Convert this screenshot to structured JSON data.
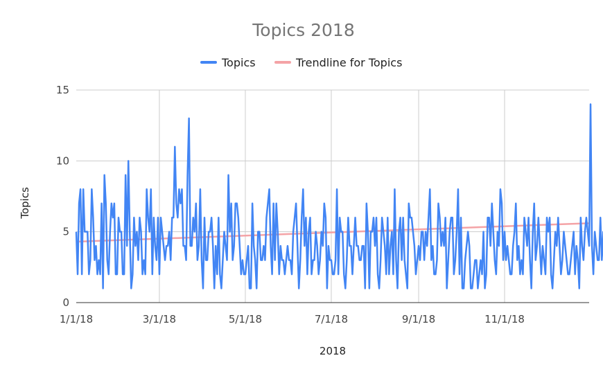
{
  "colors": {
    "topics": "#4285f4",
    "trendline": "#f4a3a6",
    "grid": "#cccccc"
  },
  "chart_data": {
    "type": "line",
    "title": "Topics 2018",
    "xlabel": "2018",
    "ylabel": "Topics",
    "ylim": [
      0,
      15
    ],
    "yticks": [
      0,
      5,
      10,
      15
    ],
    "x_range": [
      "2018-01-01",
      "2018-12-31"
    ],
    "xticks": [
      {
        "label": "1/1/18",
        "date": "2018-01-01"
      },
      {
        "label": "3/1/18",
        "date": "2018-03-01"
      },
      {
        "label": "5/1/18",
        "date": "2018-05-01"
      },
      {
        "label": "7/1/18",
        "date": "2018-07-01"
      },
      {
        "label": "9/1/18",
        "date": "2018-09-01"
      },
      {
        "label": "11/1/18",
        "date": "2018-11-01"
      }
    ],
    "grid": true,
    "legend_position": "top",
    "series": [
      {
        "name": "Topics",
        "start_date": "2018-01-01",
        "values": [
          5,
          2,
          7,
          8,
          2,
          8,
          5,
          5,
          5,
          2,
          3,
          8,
          6,
          3,
          4,
          2,
          3,
          2,
          7,
          1,
          9,
          7,
          3,
          2,
          5,
          7,
          6,
          7,
          2,
          2,
          6,
          5,
          5,
          2,
          2,
          9,
          4,
          10,
          5,
          1,
          2,
          6,
          4,
          5,
          3,
          6,
          5,
          2,
          3,
          2,
          8,
          6,
          5,
          8,
          2,
          6,
          4,
          3,
          6,
          2,
          6,
          5,
          4,
          3,
          4,
          4,
          5,
          3,
          6,
          6,
          11,
          7,
          6,
          8,
          7,
          8,
          4,
          4,
          3,
          9,
          13,
          4,
          4,
          6,
          5,
          7,
          3,
          4,
          8,
          3,
          1,
          6,
          3,
          3,
          5,
          5,
          6,
          4,
          1,
          4,
          2,
          6,
          2,
          1,
          3,
          5,
          4,
          3,
          9,
          5,
          7,
          3,
          4,
          7,
          7,
          6,
          4,
          2,
          3,
          2,
          2,
          3,
          4,
          1,
          1,
          7,
          4,
          3,
          1,
          5,
          5,
          3,
          3,
          4,
          3,
          6,
          7,
          8,
          4,
          2,
          7,
          3,
          7,
          5,
          2,
          4,
          3,
          3,
          2,
          3,
          4,
          3,
          3,
          2,
          5,
          6,
          7,
          4,
          1,
          3,
          6,
          8,
          4,
          6,
          2,
          5,
          6,
          2,
          3,
          3,
          5,
          4,
          2,
          3,
          5,
          4,
          7,
          6,
          1,
          4,
          3,
          3,
          2,
          2,
          3,
          8,
          2,
          6,
          5,
          5,
          2,
          1,
          3,
          6,
          4,
          4,
          2,
          4,
          6,
          4,
          4,
          3,
          3,
          4,
          4,
          1,
          7,
          5,
          1,
          5,
          5,
          6,
          4,
          6,
          2,
          1,
          3,
          6,
          5,
          4,
          2,
          6,
          2,
          4,
          5,
          2,
          8,
          3,
          1,
          5,
          6,
          3,
          6,
          3,
          2,
          1,
          7,
          6,
          6,
          5,
          4,
          2,
          3,
          4,
          3,
          5,
          5,
          3,
          5,
          4,
          6,
          8,
          3,
          4,
          2,
          2,
          3,
          7,
          6,
          4,
          5,
          4,
          6,
          1,
          3,
          5,
          6,
          6,
          2,
          3,
          5,
          8,
          2,
          6,
          1,
          1,
          3,
          4,
          5,
          4,
          1,
          1,
          2,
          3,
          3,
          1,
          2,
          3,
          2,
          5,
          1,
          2,
          6,
          6,
          4,
          7,
          5,
          3,
          2,
          5,
          4,
          8,
          7,
          3,
          5,
          3,
          4,
          3,
          2,
          2,
          4,
          5,
          7,
          3,
          4,
          2,
          3,
          2,
          6,
          5,
          4,
          6,
          3,
          1,
          5,
          7,
          3,
          4,
          6,
          4,
          2,
          4,
          3,
          2,
          6,
          5,
          6,
          2,
          1,
          3,
          5,
          4,
          6,
          4,
          2,
          3,
          5,
          4,
          3,
          2,
          2,
          3,
          4,
          5,
          2,
          4,
          3,
          1,
          6,
          4,
          3,
          5,
          6,
          5,
          4,
          14,
          4,
          2,
          5,
          4,
          3,
          3,
          6,
          3,
          5,
          1,
          2,
          6,
          7,
          3,
          2,
          4,
          8,
          5,
          2,
          1,
          6,
          5,
          4,
          3,
          5,
          7,
          4,
          8,
          4,
          2,
          1,
          6
        ]
      },
      {
        "name": "Trendline for Topics",
        "type": "linear",
        "start_value": 4.3,
        "end_value": 5.6
      }
    ]
  }
}
